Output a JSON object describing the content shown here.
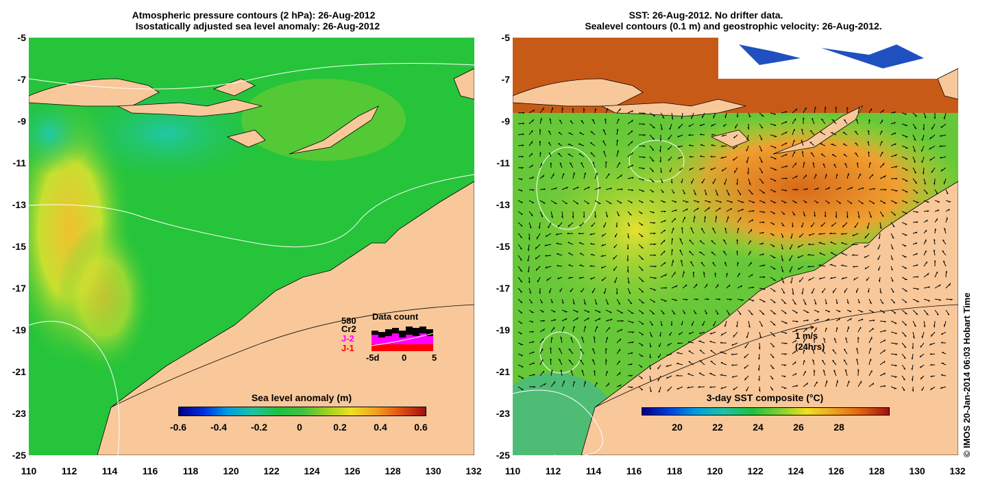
{
  "left_title": {
    "line1": "Atmospheric pressure contours (2 hPa): 26-Aug-2012",
    "line2": "Isostatically adjusted sea level anomaly: 26-Aug-2012"
  },
  "right_title": {
    "line1": "SST: 26-Aug-2012. No drifter data.",
    "line2": "Sealevel contours (0.1 m) and geostrophic velocity: 26-Aug-2012."
  },
  "y_ticks": [
    "-5",
    "-7",
    "-9",
    "-11",
    "-13",
    "-15",
    "-17",
    "-19",
    "-21",
    "-23",
    "-25"
  ],
  "x_ticks": [
    "110",
    "112",
    "114",
    "116",
    "118",
    "120",
    "122",
    "124",
    "126",
    "128",
    "130",
    "132"
  ],
  "left_colorbar": {
    "title": "Sea level anomaly (m)",
    "ticks": [
      "-0.6",
      "-0.4",
      "-0.2",
      "0",
      "0.2",
      "0.4",
      "0.6"
    ]
  },
  "right_colorbar": {
    "title": "3-day SST composite (°C)",
    "ticks": [
      "20",
      "22",
      "24",
      "26",
      "28"
    ]
  },
  "data_count": {
    "title": "Data count",
    "sats": [
      {
        "label": "580",
        "color": "#000000"
      },
      {
        "label": "Cr2",
        "color": "#000000"
      },
      {
        "label": "J-2",
        "color": "#ff00ff"
      },
      {
        "label": "J-1",
        "color": "#ff0000"
      }
    ],
    "x_ticks": [
      "-5d",
      "0",
      "5"
    ]
  },
  "scale_arrow": {
    "line1": "1 m/s",
    "line2": "(24hrs)"
  },
  "copyright": "© IMOS 20-Jan-2014 06:03 Hobart Time",
  "colors": {
    "land": "#f8c89a",
    "ocean_green": "#22c43c",
    "warm": "#d86a1a"
  }
}
